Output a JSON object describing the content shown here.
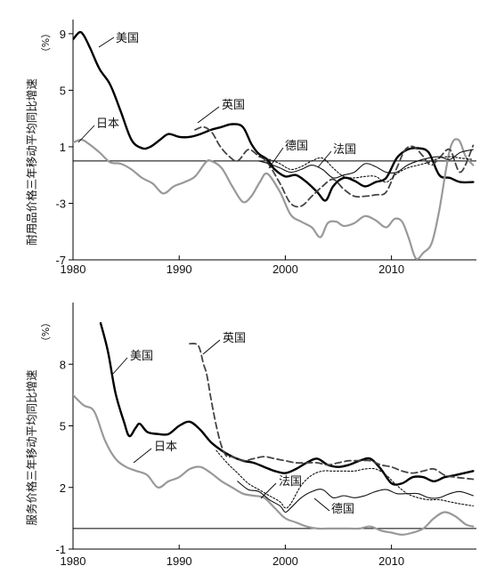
{
  "chart_data": [
    {
      "type": "line",
      "ylabel": "耐用品价格三年移动平均同比增速",
      "unit": "（%）",
      "xlim": [
        1980,
        2018
      ],
      "ylim": [
        -7,
        10
      ],
      "xticks": [
        1980,
        1990,
        2000,
        2010
      ],
      "yticks": [
        9,
        5,
        1,
        -3,
        -7
      ],
      "zero_line": true,
      "series": [
        {
          "name": "美国",
          "color": "#000000",
          "width": 2.4,
          "dash": "",
          "x": [
            1980,
            1980.6,
            1981,
            1981.6,
            1982.5,
            1983.5,
            1984.5,
            1985.5,
            1986.5,
            1987.3,
            1988.2,
            1989,
            1990,
            1991,
            1992,
            1993,
            1994,
            1995,
            1996,
            1996.8,
            1997.5,
            1998.3,
            1999,
            2000,
            2001,
            2002,
            2003,
            2003.8,
            2004.5,
            2005.5,
            2006.5,
            2007.5,
            2008.5,
            2009.5,
            2010.5,
            2011.5,
            2012.5,
            2013.5,
            2014.5,
            2015.5,
            2016.5,
            2017.7
          ],
          "y": [
            8.6,
            9.1,
            8.9,
            8.0,
            6.5,
            5.4,
            3.5,
            1.5,
            0.9,
            1.0,
            1.5,
            1.9,
            1.7,
            1.7,
            1.9,
            2.2,
            2.4,
            2.6,
            2.4,
            1.2,
            0.5,
            0.1,
            -0.6,
            -1.1,
            -1.0,
            -1.5,
            -2.2,
            -2.8,
            -1.8,
            -1.2,
            -1.4,
            -1.8,
            -1.5,
            -1.2,
            0.2,
            0.8,
            0.9,
            0.6,
            -1.0,
            -1.2,
            -1.5,
            -1.5
          ]
        },
        {
          "name": "日本",
          "color": "#999999",
          "width": 2.2,
          "dash": "",
          "x": [
            1980,
            1980.8,
            1981.5,
            1982.5,
            1983.5,
            1984.5,
            1985.5,
            1986.5,
            1987.5,
            1988.5,
            1989.5,
            1990.5,
            1991.5,
            1992.5,
            1993,
            1994,
            1995,
            1996,
            1996.8,
            1997.6,
            1998.3,
            1999.5,
            2000.5,
            2001.5,
            2002.5,
            2003.3,
            2004,
            2004.8,
            2005.5,
            2006.5,
            2007.5,
            2008.5,
            2009.5,
            2010.3,
            2011,
            2011.6,
            2012.3,
            2013,
            2013.8,
            2014.5,
            2015.5,
            2016.3,
            2017,
            2017.7
          ],
          "y": [
            1.3,
            1.5,
            1.2,
            0.6,
            -0.1,
            -0.2,
            -0.6,
            -1.2,
            -1.6,
            -2.3,
            -1.8,
            -1.5,
            -1.1,
            -0.1,
            0.0,
            -0.5,
            -1.8,
            -2.9,
            -2.5,
            -1.5,
            -0.9,
            -2.2,
            -3.8,
            -4.3,
            -4.7,
            -5.4,
            -4.4,
            -4.3,
            -4.6,
            -4.4,
            -3.9,
            -4.2,
            -4.7,
            -4.1,
            -4.3,
            -5.4,
            -6.9,
            -6.5,
            -5.8,
            -3.5,
            0.8,
            1.5,
            0.3,
            -0.3
          ]
        },
        {
          "name": "英国",
          "color": "#444444",
          "width": 1.8,
          "dash": "7,4",
          "x": [
            1991.5,
            1992.3,
            1993.1,
            1993.8,
            1994.6,
            1995.5,
            1996.5,
            1997.4,
            1998.3,
            1999.5,
            2000.5,
            2001.5,
            2002.5,
            2003.5,
            2004.5,
            2005.5,
            2006.5,
            2007.5,
            2008.5,
            2009.5,
            2010.5,
            2011.3,
            2012.1,
            2012.9,
            2013.7,
            2014.5,
            2015.5,
            2016.5,
            2017.7
          ],
          "y": [
            2.2,
            2.4,
            2.0,
            1.1,
            0.4,
            0.0,
            0.8,
            0.4,
            -0.1,
            -1.6,
            -3.0,
            -3.2,
            -2.5,
            -1.8,
            -1.3,
            -2.0,
            -2.5,
            -2.5,
            -2.4,
            -2.2,
            -0.5,
            0.8,
            1.0,
            0.4,
            -0.3,
            0.2,
            0.8,
            -0.8,
            1.1
          ]
        },
        {
          "name": "德国",
          "color": "#111111",
          "width": 1.1,
          "dash": "",
          "x": [
            1997.5,
            1998.5,
            1999.5,
            2000.5,
            2001.5,
            2002.5,
            2003.5,
            2004.5,
            2005.5,
            2006.5,
            2007.5,
            2008.5,
            2009.5,
            2010.5,
            2011.5,
            2012.5,
            2013.5,
            2014.5,
            2015.5,
            2016.5,
            2017.7
          ],
          "y": [
            0.0,
            -0.2,
            -0.5,
            -0.8,
            -0.6,
            -0.3,
            -0.6,
            -1.2,
            -1.0,
            -0.8,
            -0.2,
            -0.4,
            -0.8,
            -0.8,
            -0.3,
            0.0,
            0.2,
            0.3,
            0.1,
            0.6,
            0.8
          ]
        },
        {
          "name": "法国",
          "color": "#111111",
          "width": 1.1,
          "dash": "2,2",
          "x": [
            1997.5,
            1998.5,
            1999.5,
            2000.5,
            2001.5,
            2002.5,
            2003.5,
            2004.5,
            2005.5,
            2006.5,
            2007.5,
            2008.5,
            2009.5,
            2010.5,
            2011.5,
            2012.5,
            2013.5,
            2014.5,
            2015.5,
            2016.5,
            2017.7
          ],
          "y": [
            0.3,
            0.1,
            -0.2,
            -0.6,
            -0.4,
            0.0,
            0.2,
            -0.5,
            -1.1,
            -1.2,
            -1.1,
            -1.1,
            -1.5,
            -0.9,
            -0.5,
            -0.3,
            -0.1,
            0.2,
            0.3,
            0.2,
            0.1
          ]
        }
      ],
      "annotations": [
        {
          "text": "美国"
        },
        {
          "text": "英国"
        },
        {
          "text": "日本"
        },
        {
          "text": "德国"
        },
        {
          "text": "法国"
        }
      ]
    },
    {
      "type": "line",
      "ylabel": "服务价格三年移动平均同比增速",
      "unit": "（%）",
      "xlim": [
        1980,
        2018
      ],
      "ylim": [
        -1,
        11
      ],
      "xticks": [
        1980,
        1990,
        2000,
        2010
      ],
      "yticks": [
        8,
        5,
        2,
        -1
      ],
      "zero_line": true,
      "series": [
        {
          "name": "美国",
          "color": "#000000",
          "width": 2.4,
          "dash": "",
          "x": [
            1982.6,
            1983.3,
            1984,
            1984.8,
            1985.3,
            1985.9,
            1986.3,
            1987,
            1988,
            1989,
            1990,
            1991,
            1992,
            1993,
            1994,
            1995,
            1996,
            1997,
            1998,
            1999,
            2000,
            2001,
            2002,
            2003,
            2004,
            2005,
            2006,
            2007,
            2008,
            2009,
            2010,
            2011,
            2012,
            2013,
            2014,
            2015,
            2016,
            2017.7
          ],
          "y": [
            10.0,
            8.6,
            6.6,
            5.2,
            4.5,
            4.9,
            5.1,
            4.7,
            4.6,
            4.6,
            5.0,
            5.2,
            4.8,
            4.2,
            3.8,
            3.5,
            3.3,
            3.2,
            3.0,
            2.8,
            2.7,
            2.9,
            3.2,
            3.4,
            3.1,
            3.0,
            3.1,
            3.3,
            3.4,
            2.9,
            2.2,
            2.2,
            2.5,
            2.5,
            2.3,
            2.5,
            2.6,
            2.8
          ]
        },
        {
          "name": "日本",
          "color": "#999999",
          "width": 2.2,
          "dash": "",
          "x": [
            1980,
            1981,
            1982,
            1983,
            1984,
            1985,
            1986,
            1987,
            1988,
            1989,
            1990,
            1991,
            1992,
            1993,
            1994,
            1995,
            1996,
            1997,
            1998,
            1999,
            2000,
            2001,
            2002,
            2003,
            2004,
            2005,
            2006,
            2007,
            2008,
            2009,
            2010,
            2011,
            2012,
            2013,
            2014,
            2015,
            2016,
            2017,
            2017.7
          ],
          "y": [
            6.5,
            6.0,
            5.7,
            4.3,
            3.4,
            3.0,
            2.8,
            2.6,
            2.0,
            2.3,
            2.5,
            2.9,
            3.0,
            2.7,
            2.3,
            2.0,
            1.7,
            1.6,
            1.5,
            1.0,
            0.5,
            0.3,
            0.1,
            0.0,
            0.0,
            0.0,
            0.0,
            0.0,
            0.1,
            -0.1,
            -0.2,
            -0.3,
            -0.2,
            0.0,
            0.5,
            0.8,
            0.6,
            0.2,
            0.1
          ]
        },
        {
          "name": "英国",
          "color": "#444444",
          "width": 1.8,
          "dash": "7,4",
          "x": [
            1991.0,
            1991.8,
            1992.3,
            1992.6,
            1993,
            1993.5,
            1994,
            1994.5,
            1995,
            1996,
            1997,
            1998,
            1999,
            2000,
            2001,
            2002,
            2003,
            2004,
            2005,
            2006,
            2007,
            2008,
            2009,
            2010,
            2011,
            2012,
            2013,
            2014,
            2015,
            2016,
            2017.7
          ],
          "y": [
            9.0,
            8.9,
            8.0,
            7.5,
            6.3,
            5.0,
            4.0,
            3.5,
            3.5,
            3.3,
            3.4,
            3.5,
            3.4,
            3.3,
            3.2,
            3.2,
            3.2,
            3.1,
            3.2,
            3.3,
            3.3,
            3.3,
            3.1,
            3.0,
            2.8,
            2.7,
            2.8,
            2.9,
            2.6,
            2.5,
            2.4
          ]
        },
        {
          "name": "德国",
          "color": "#111111",
          "width": 1.1,
          "dash": "",
          "x": [
            1995.5,
            1996.5,
            1997.5,
            1998.5,
            1999.5,
            2000,
            2000.5,
            2001.5,
            2002.5,
            2003.5,
            2004.5,
            2005.5,
            2006.5,
            2007.5,
            2008.5,
            2009.5,
            2010.5,
            2011.5,
            2012.5,
            2013.5,
            2014.5,
            2015.5,
            2016.5,
            2017.7
          ],
          "y": [
            2.3,
            1.9,
            1.8,
            1.4,
            1.1,
            0.8,
            1.0,
            1.5,
            1.8,
            1.9,
            1.5,
            1.6,
            1.5,
            1.6,
            1.8,
            1.9,
            1.7,
            1.7,
            1.7,
            1.5,
            1.5,
            1.7,
            1.8,
            1.6
          ]
        },
        {
          "name": "法国",
          "color": "#111111",
          "width": 1.1,
          "dash": "2,2",
          "x": [
            1993.5,
            1994.5,
            1995.5,
            1996.5,
            1997.5,
            1998.5,
            1999.5,
            2000,
            2000.5,
            2001.5,
            2002.5,
            2003.5,
            2004.5,
            2005.5,
            2006.5,
            2007.5,
            2008.5,
            2009.5,
            2010.5,
            2011.5,
            2012.5,
            2013.5,
            2014.5,
            2015.5,
            2016.5,
            2017.7
          ],
          "y": [
            3.8,
            3.2,
            2.7,
            2.2,
            1.9,
            1.6,
            1.3,
            1.0,
            1.2,
            2.1,
            2.6,
            2.8,
            2.8,
            2.8,
            2.8,
            2.9,
            2.9,
            2.6,
            2.1,
            1.7,
            1.5,
            1.4,
            1.4,
            1.3,
            1.2,
            1.1
          ]
        }
      ],
      "annotations": [
        {
          "text": "美国"
        },
        {
          "text": "英国"
        },
        {
          "text": "日本"
        },
        {
          "text": "法国"
        },
        {
          "text": "德国"
        }
      ]
    }
  ]
}
